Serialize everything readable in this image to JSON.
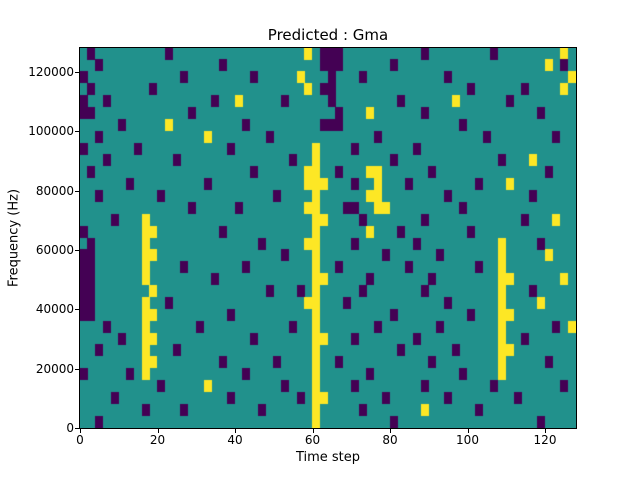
{
  "figure": {
    "background": "#ffffff"
  },
  "chart_data": {
    "type": "heatmap",
    "title": "Predicted : Gma",
    "xlabel": "Time step",
    "ylabel": "Frequency (Hz)",
    "xlim": [
      0,
      128
    ],
    "ylim": [
      0,
      128000
    ],
    "x_ticks": [
      0,
      20,
      40,
      60,
      80,
      100,
      120
    ],
    "y_ticks": [
      0,
      20000,
      40000,
      60000,
      80000,
      100000,
      120000
    ],
    "colormap": "viridis",
    "value_colors": {
      "0": "#440154",
      "1": "#21918c",
      "2": "#fde725"
    },
    "grid_encoding": "rows listed top-to-bottom (row 0 = 124000-128000 Hz band, last row = 0-4000 Hz); each char is one cell: column spans 2 time steps; 0 = low (purple), 1 = mid (teal), 2 = high (yellow)",
    "rows": [
      "1011111111101111111111111111121000111111111101111111101111111121",
      "1101111111111111110111111111111000111111011111111111111111112101",
      "0111111111111011111111011111211101110111111111101111111111111112",
      "1011111110111111111111111111121001111111111111111101111110111121",
      "0110111111111111101121111101111101111111101111112111111011111111",
      "0011111111111101111111111111111110111211111101111111111111101111",
      "1111101111121111111110111111111000111111111111111011111111111111",
      "1101111111111111211111110111111111111101111111111111011111111011",
      "0111111011111111111011111111112111101111111011111111111111111111",
      "1110111111110111111111111110112111111111011111111111110111211111",
      "1011111111111111111111011111122110111221111110111111111111110111",
      "1111110111111111011111111111122211101121110111111110111211111111",
      "1101111111011111111111111011112111111221111111101111111111011111",
      "1111111111111101111101111111122111001122111111111011111111111111",
      "1111011121111111111111111111112211110111111101111111111110111211",
      "0111111122111111110111111111112111111211101111111101111111111111",
      "1011111121111111111111101111122111101111111011111111112111101111",
      "0011111122111111111111111101112111111110111111011111112111112111",
      "0011111121111011111110111111112110111111110111111110112111111111",
      "0011111121111111101111111111112211111011111110111111112211111121",
      "0011111112111111111111110111012111110111111101111111112111011111",
      "0011111121101111111111111111122111011111111111101111112111121111",
      "0011111122111111111011111111112111111111011111111101112211111111",
      "1110111121111110111111111110112111111101111111011111112111111012",
      "1111101122111111111111011111112211101111111011111111112110111111",
      "1101111121110111111111111111112111111111101111110111112211111111",
      "1111111122111111110111111011112110111111111110111111112111110111",
      "0111110121111111111110111111112111111011111111111011112111111111",
      "1111111111011111211111111101112111101111111101111111101111111101",
      "1111011111111111111011111111012211111110111111101111111101111111",
      "1111111101111011111111101111112111110111111121111110111111111111",
      "1101111111111111111111111111112111111111011111111111111111101111"
    ]
  }
}
